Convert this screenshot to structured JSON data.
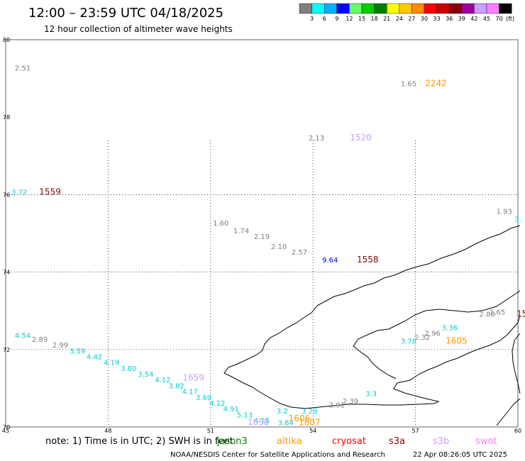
{
  "title": "12:00 – 23:59 UTC 04/18/2025",
  "subtitle": "12 hour collection of altimeter wave heights",
  "colorbar": {
    "labels": [
      "3",
      "6",
      "9",
      "12",
      "15",
      "18",
      "21",
      "24",
      "27",
      "30",
      "33",
      "36",
      "39",
      "42",
      "45",
      "70"
    ],
    "unit": "(ft)",
    "colors": [
      "#7f7f7f",
      "#00ffff",
      "#00b0ff",
      "#0000ff",
      "#66ff66",
      "#00d000",
      "#008000",
      "#ffff00",
      "#ffc800",
      "#ff8c00",
      "#ff0000",
      "#c80000",
      "#8b0000",
      "#a000a0",
      "#c8a0ff",
      "#ff80ff",
      "#000000"
    ]
  },
  "axes": {
    "x_ticks": [
      "45",
      "48",
      "51",
      "54",
      "57",
      "60"
    ],
    "y_ticks": [
      "80",
      "78",
      "76",
      "74",
      "72",
      "70"
    ]
  },
  "wave_labels": [
    {
      "text": "2.51",
      "lon": 45.5,
      "lat": 79.2,
      "color": "#7f7f7f"
    },
    {
      "text": "1.65",
      "lon": 56.8,
      "lat": 78.8,
      "color": "#7f7f7f"
    },
    {
      "text": "2.13",
      "lon": 54.1,
      "lat": 77.4,
      "color": "#7f7f7f"
    },
    {
      "text": "3.72",
      "lon": 45.4,
      "lat": 76.0,
      "color": "#00cccc"
    },
    {
      "text": "1.93",
      "lon": 59.6,
      "lat": 75.5,
      "color": "#7f7f7f"
    },
    {
      "text": "3.",
      "lon": 60.0,
      "lat": 75.3,
      "color": "#00cccc"
    },
    {
      "text": "1.60",
      "lon": 51.3,
      "lat": 75.2,
      "color": "#7f7f7f"
    },
    {
      "text": "1.74",
      "lon": 51.9,
      "lat": 75.0,
      "color": "#7f7f7f"
    },
    {
      "text": "2.19",
      "lon": 52.5,
      "lat": 74.85,
      "color": "#7f7f7f"
    },
    {
      "text": "2.10",
      "lon": 53.0,
      "lat": 74.6,
      "color": "#7f7f7f"
    },
    {
      "text": "2.57",
      "lon": 53.6,
      "lat": 74.45,
      "color": "#7f7f7f"
    },
    {
      "text": "9.64",
      "lon": 54.5,
      "lat": 74.25,
      "color": "#0000cc"
    },
    {
      "text": "1.65",
      "lon": 59.4,
      "lat": 72.9,
      "color": "#7f7f7f"
    },
    {
      "text": "2.80",
      "lon": 59.1,
      "lat": 72.85,
      "color": "#7f7f7f"
    },
    {
      "text": "3.36",
      "lon": 58.0,
      "lat": 72.5,
      "color": "#00cccc"
    },
    {
      "text": "2.96",
      "lon": 57.5,
      "lat": 72.35,
      "color": "#7f7f7f"
    },
    {
      "text": "2.32",
      "lon": 57.2,
      "lat": 72.25,
      "color": "#7f7f7f"
    },
    {
      "text": "3.78",
      "lon": 56.8,
      "lat": 72.15,
      "color": "#00cccc"
    },
    {
      "text": "4.54",
      "lon": 45.5,
      "lat": 72.3,
      "color": "#00cccc"
    },
    {
      "text": "2.89",
      "lon": 46.0,
      "lat": 72.2,
      "color": "#7f7f7f"
    },
    {
      "text": "2.99",
      "lon": 46.6,
      "lat": 72.05,
      "color": "#7f7f7f"
    },
    {
      "text": "3.59",
      "lon": 47.1,
      "lat": 71.9,
      "color": "#00cccc"
    },
    {
      "text": "4.42",
      "lon": 47.6,
      "lat": 71.75,
      "color": "#00cccc"
    },
    {
      "text": "4.19",
      "lon": 48.1,
      "lat": 71.6,
      "color": "#00cccc"
    },
    {
      "text": "3.80",
      "lon": 48.6,
      "lat": 71.45,
      "color": "#00cccc"
    },
    {
      "text": "3.54",
      "lon": 49.1,
      "lat": 71.3,
      "color": "#00cccc"
    },
    {
      "text": "4.12",
      "lon": 49.6,
      "lat": 71.15,
      "color": "#00cccc"
    },
    {
      "text": "3.82",
      "lon": 50.0,
      "lat": 71.0,
      "color": "#00cccc"
    },
    {
      "text": "4.17",
      "lon": 50.4,
      "lat": 70.85,
      "color": "#00cccc"
    },
    {
      "text": "3.69",
      "lon": 50.8,
      "lat": 70.7,
      "color": "#00cccc"
    },
    {
      "text": "4.12",
      "lon": 51.2,
      "lat": 70.55,
      "color": "#00cccc"
    },
    {
      "text": "4.91",
      "lon": 51.6,
      "lat": 70.4,
      "color": "#00cccc"
    },
    {
      "text": "5.13",
      "lon": 52.0,
      "lat": 70.25,
      "color": "#00cccc"
    },
    {
      "text": "4.15",
      "lon": 52.5,
      "lat": 70.1,
      "color": "#00cccc"
    },
    {
      "text": "3.2",
      "lon": 53.1,
      "lat": 70.35,
      "color": "#00cccc"
    },
    {
      "text": "3.29",
      "lon": 53.9,
      "lat": 70.35,
      "color": "#00cccc"
    },
    {
      "text": "2.91",
      "lon": 54.7,
      "lat": 70.5,
      "color": "#7f7f7f"
    },
    {
      "text": "2.39",
      "lon": 55.1,
      "lat": 70.6,
      "color": "#7f7f7f"
    },
    {
      "text": "3.3",
      "lon": 55.7,
      "lat": 70.8,
      "color": "#00cccc"
    },
    {
      "text": "3.84",
      "lon": 53.2,
      "lat": 70.05,
      "color": "#00cccc"
    }
  ],
  "time_labels": [
    {
      "text": "2242",
      "lon": 57.6,
      "lat": 78.8,
      "color": "#ff9900"
    },
    {
      "text": "1520",
      "lon": 55.4,
      "lat": 77.4,
      "color": "#c8a0ff"
    },
    {
      "text": "1559",
      "lon": 46.3,
      "lat": 76.0,
      "color": "#8b0000"
    },
    {
      "text": "1558",
      "lon": 55.6,
      "lat": 74.25,
      "color": "#8b0000"
    },
    {
      "text": "155",
      "lon": 60.2,
      "lat": 72.85,
      "color": "#8b0000"
    },
    {
      "text": "1605",
      "lon": 58.2,
      "lat": 72.15,
      "color": "#ff9900"
    },
    {
      "text": "1659",
      "lon": 50.5,
      "lat": 71.2,
      "color": "#c8a0ff"
    },
    {
      "text": "1606",
      "lon": 53.6,
      "lat": 70.15,
      "color": "#ff9900"
    },
    {
      "text": "1607",
      "lon": 53.9,
      "lat": 70.05,
      "color": "#ff9900"
    },
    {
      "text": "1658",
      "lon": 52.4,
      "lat": 70.05,
      "color": "#c8a0ff"
    }
  ],
  "footer": {
    "note": "note:  1) Time is in UTC;  2) SWH is in feet",
    "satellites": [
      {
        "name": "jason3",
        "color": "#008000"
      },
      {
        "name": "altika",
        "color": "#ff9900"
      },
      {
        "name": "cryosat",
        "color": "#ff0000"
      },
      {
        "name": "s3a",
        "color": "#8b0000"
      },
      {
        "name": "s3b",
        "color": "#c8a0ff"
      },
      {
        "name": "swot",
        "color": "#ff80ff"
      }
    ],
    "credit": "NOAA/NESDIS Center for Satellite Applications and Research",
    "timestamp": "22 Apr 08:26:05 UTC 2025"
  }
}
